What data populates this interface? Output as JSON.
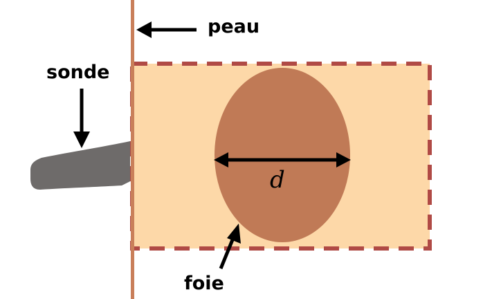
{
  "labels": {
    "skin": "peau",
    "probe": "sonde",
    "liver": "foie",
    "distance": "d"
  },
  "colors": {
    "skin_line": "#c97f5a",
    "tissue_fill": "#fdd8a8",
    "tissue_border": "#b04a45",
    "liver_fill": "#c07a56",
    "probe_fill": "#6e6b6a",
    "arrow": "#000000",
    "background": "#ffffff"
  }
}
